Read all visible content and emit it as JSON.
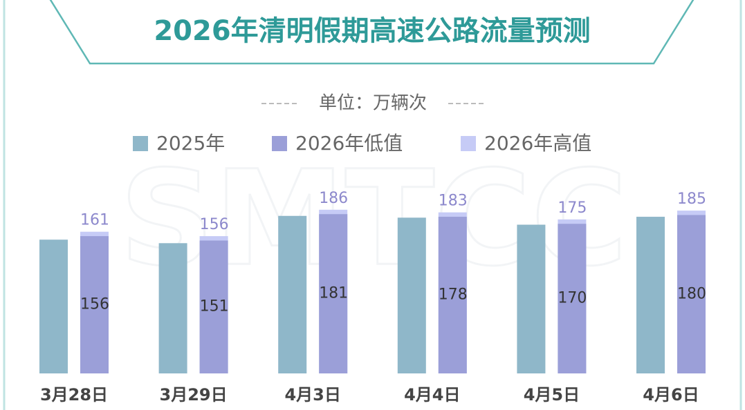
{
  "chart_data": {
    "type": "bar",
    "title": "2026年清明假期高速公路流量预测",
    "subtitle": "单位：万辆次",
    "watermark": "SMTCC",
    "categories": [
      "3月28日",
      "3月29日",
      "4月3日",
      "4月4日",
      "4月5日",
      "4月6日"
    ],
    "series": [
      {
        "name": "2025年",
        "color": "#8fb7c9",
        "values": [
          152,
          148,
          179,
          177,
          169,
          178
        ]
      },
      {
        "name": "2026年低值",
        "color": "#9b9fd8",
        "values": [
          156,
          151,
          181,
          178,
          170,
          180
        ]
      },
      {
        "name": "2026年高值",
        "color": "#c6cbf6",
        "values": [
          161,
          156,
          186,
          183,
          175,
          185
        ]
      }
    ],
    "ylim": [
      0,
      200
    ]
  }
}
